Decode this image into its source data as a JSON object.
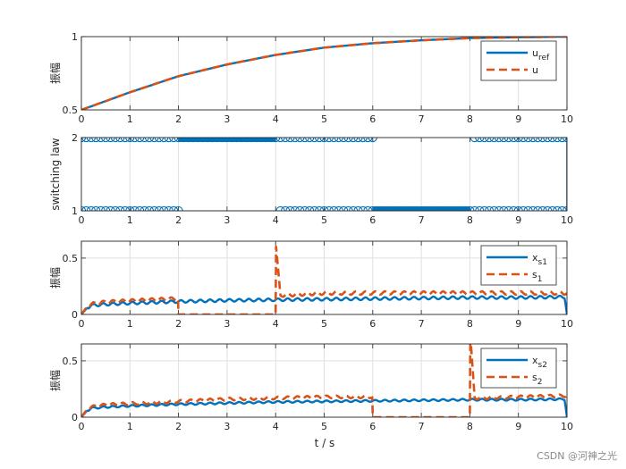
{
  "figure": {
    "xlabel": "t / s",
    "watermark": "CSDN @河神之光"
  },
  "colors": {
    "blue": "#0072BD",
    "orange": "#D95319",
    "grid": "#dfdfdf",
    "axis": "#262626"
  },
  "chart_data": [
    {
      "type": "line",
      "ylabel": "振幅",
      "xlim": [
        0,
        10
      ],
      "ylim": [
        0.5,
        1
      ],
      "xticks": [
        "0",
        "1",
        "2",
        "3",
        "4",
        "5",
        "6",
        "7",
        "8",
        "9",
        "10"
      ],
      "yticks": [
        "0.5",
        "1"
      ],
      "grid": true,
      "legend": {
        "placement": "top-right",
        "entries": [
          {
            "base": "u",
            "sub": "ref"
          },
          {
            "base": "u",
            "sub": ""
          }
        ]
      },
      "series": [
        {
          "name": "u_ref",
          "color": "blue",
          "style": "solid",
          "x": [
            0,
            1,
            2,
            3,
            4,
            5,
            6,
            7,
            8,
            9,
            10
          ],
          "y": [
            0.5,
            0.62,
            0.73,
            0.81,
            0.875,
            0.925,
            0.955,
            0.975,
            0.99,
            0.996,
            1.0
          ]
        },
        {
          "name": "u",
          "color": "orange",
          "style": "dashed",
          "x": [
            0,
            1,
            2,
            3,
            4,
            5,
            6,
            7,
            8,
            9,
            10
          ],
          "y": [
            0.5,
            0.62,
            0.73,
            0.81,
            0.875,
            0.925,
            0.955,
            0.975,
            0.99,
            0.996,
            1.0
          ]
        }
      ]
    },
    {
      "type": "scatter",
      "ylabel": "switching law",
      "xlim": [
        0,
        10
      ],
      "ylim": [
        1,
        2
      ],
      "xticks": [
        "0",
        "1",
        "2",
        "3",
        "4",
        "5",
        "6",
        "7",
        "8",
        "9",
        "10"
      ],
      "yticks": [
        "1",
        "2"
      ],
      "grid": true,
      "marker": "open-circle",
      "segments": [
        {
          "y": 2,
          "x_start": 0,
          "x_end": 6
        },
        {
          "y": 2,
          "x_start": 8.1,
          "x_end": 10
        },
        {
          "y": 1,
          "x_start": 0,
          "x_end": 2
        },
        {
          "y": 1,
          "x_start": 4.1,
          "x_end": 10
        }
      ],
      "dense_segments": [
        {
          "y": 2,
          "x_start": 2,
          "x_end": 4
        },
        {
          "y": 1,
          "x_start": 6,
          "x_end": 8
        }
      ],
      "series": [
        {
          "color": "blue",
          "x": [
            0,
            2,
            4.1,
            6,
            8.1,
            10
          ],
          "y": [
            1,
            1,
            1,
            2,
            2,
            1
          ]
        }
      ]
    },
    {
      "type": "line",
      "ylabel": "振幅",
      "xlim": [
        0,
        10
      ],
      "ylim": [
        0,
        0.65
      ],
      "xticks": [
        "0",
        "1",
        "2",
        "3",
        "4",
        "5",
        "6",
        "7",
        "8",
        "9",
        "10"
      ],
      "yticks": [
        "0",
        "0.5"
      ],
      "grid": true,
      "legend": {
        "placement": "top-right",
        "entries": [
          {
            "base": "x",
            "sub": "s1"
          },
          {
            "base": "s",
            "sub": "1"
          }
        ]
      },
      "series": [
        {
          "name": "x_s1",
          "color": "blue",
          "style": "solid",
          "ripple": 0.012,
          "x": [
            0,
            0.1,
            0.2,
            0.5,
            1,
            2,
            3,
            4,
            5,
            6,
            7,
            8,
            9,
            9.95,
            10
          ],
          "y": [
            0,
            0.05,
            0.08,
            0.09,
            0.1,
            0.115,
            0.125,
            0.13,
            0.135,
            0.14,
            0.145,
            0.15,
            0.15,
            0.155,
            0
          ]
        },
        {
          "name": "s_1",
          "color": "orange",
          "style": "dashed",
          "ripple": 0.015,
          "x": [
            0,
            0.1,
            0.2,
            0.5,
            1,
            1.99,
            2,
            3.99,
            4,
            4.01,
            4.1,
            5,
            6,
            7,
            8,
            9,
            10
          ],
          "y": [
            0,
            0.06,
            0.09,
            0.11,
            0.12,
            0.14,
            0,
            0,
            0,
            0.6,
            0.17,
            0.19,
            0.19,
            0.19,
            0.19,
            0.19,
            0.19
          ]
        }
      ]
    },
    {
      "type": "line",
      "ylabel": "振幅",
      "xlim": [
        0,
        10
      ],
      "ylim": [
        0,
        0.65
      ],
      "xticks": [
        "0",
        "1",
        "2",
        "3",
        "4",
        "5",
        "6",
        "7",
        "8",
        "9",
        "10"
      ],
      "yticks": [
        "0",
        "0.5"
      ],
      "grid": true,
      "legend": {
        "placement": "top-right",
        "entries": [
          {
            "base": "x",
            "sub": "s2"
          },
          {
            "base": "s",
            "sub": "2"
          }
        ]
      },
      "series": [
        {
          "name": "x_s2",
          "color": "blue",
          "style": "solid",
          "ripple": 0.008,
          "x": [
            0,
            0.1,
            0.2,
            0.5,
            1,
            2,
            3,
            4,
            5,
            6,
            7,
            8,
            9,
            9.95,
            10
          ],
          "y": [
            0,
            0.05,
            0.08,
            0.09,
            0.1,
            0.115,
            0.125,
            0.135,
            0.14,
            0.145,
            0.15,
            0.155,
            0.155,
            0.16,
            0
          ]
        },
        {
          "name": "s_2",
          "color": "orange",
          "style": "dashed",
          "ripple": 0.012,
          "x": [
            0,
            0.1,
            0.2,
            0.5,
            1,
            2,
            3,
            4,
            5,
            5.99,
            6,
            7.99,
            8,
            8.01,
            8.1,
            9,
            10
          ],
          "y": [
            0,
            0.06,
            0.09,
            0.11,
            0.12,
            0.14,
            0.16,
            0.17,
            0.18,
            0.18,
            0,
            0,
            0,
            0.72,
            0.17,
            0.18,
            0.19
          ]
        }
      ]
    }
  ]
}
